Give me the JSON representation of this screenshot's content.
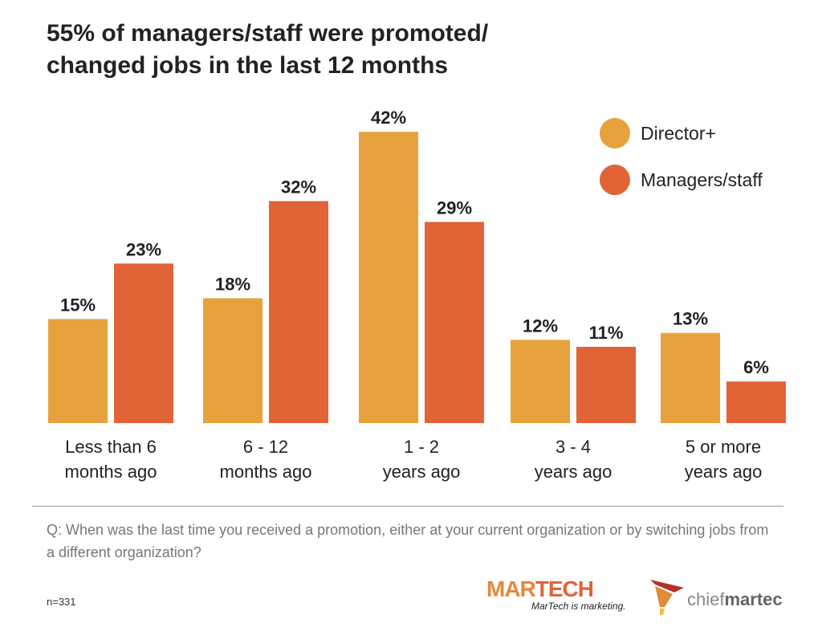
{
  "chart_data": {
    "type": "bar",
    "title": "55% of managers/staff were promoted/ changed jobs in the last 12 months",
    "categories": [
      [
        "Less than 6",
        "months ago"
      ],
      [
        "6 - 12",
        "months ago"
      ],
      [
        "1 - 2",
        "years ago"
      ],
      [
        "3 - 4",
        "years ago"
      ],
      [
        "5 or more",
        "years ago"
      ]
    ],
    "series": [
      {
        "name": "Director+",
        "color": "#e7a23e",
        "values": [
          15,
          18,
          42,
          12,
          13
        ]
      },
      {
        "name": "Managers/staff",
        "color": "#e06436",
        "values": [
          23,
          32,
          29,
          11,
          6
        ]
      }
    ],
    "value_format": "%",
    "ylim": [
      0,
      42
    ],
    "grid": false,
    "legend": "top-right"
  },
  "question": "Q: When was the last time you received a promotion, either at your current organization or by switching jobs from a different organization?",
  "sample": "n=331",
  "logos": {
    "martech": "MARTECH",
    "martech_tagline": "MarTech is marketing.",
    "chiefmartec": "chiefmartec"
  }
}
